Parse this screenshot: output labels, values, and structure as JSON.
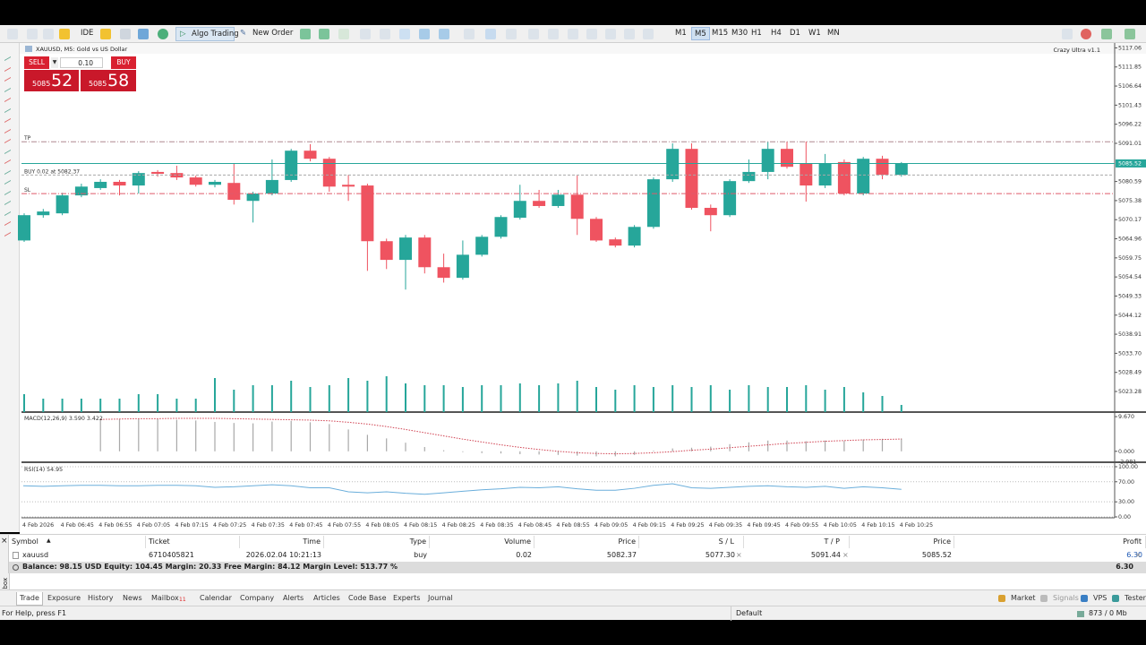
{
  "toolbar": {
    "ide": "IDE",
    "algo_trading": "Algo Trading",
    "new_order": "New Order",
    "timeframes": [
      "M1",
      "M5",
      "M15",
      "M30",
      "H1",
      "H4",
      "D1",
      "W1",
      "MN"
    ]
  },
  "chart_window": {
    "title": "XAUUSD, M5:  Gold vs US Dollar",
    "indicator": "Crazy Ultra v1.1"
  },
  "one_click": {
    "sell": "SELL",
    "volume": "0.10",
    "buy": "BUY",
    "bid_prefix": "5085",
    "bid_pips": "52",
    "ask_prefix": "5085",
    "ask_pips": "58"
  },
  "chart_data": [
    {
      "type": "candlestick",
      "up_color": "#26a69a",
      "down_color": "#ef5360",
      "volume_color": "#26a69a",
      "open": [
        5064.5,
        5071.4,
        5071.9,
        5076.8,
        5078.8,
        5080.5,
        5079.5,
        5083.2,
        5082.9,
        5081.7,
        5079.7,
        5080.2,
        5075.3,
        5077.3,
        5081.0,
        5089.0,
        5086.8,
        5079.7,
        5079.5,
        5064.3,
        5059.2,
        5065.3,
        5057.2,
        5054.3,
        5060.6,
        5065.5,
        5070.7,
        5075.3,
        5073.9,
        5077.0,
        5070.4,
        5064.8,
        5063.1,
        5068.2,
        5081.2,
        5089.5,
        5073.4,
        5071.4,
        5080.7,
        5083.2,
        5089.5,
        5085.6,
        5079.5,
        5085.9,
        5077.3,
        5086.8,
        5082.4
      ],
      "high": [
        5071.9,
        5073.1,
        5077.5,
        5080.0,
        5081.2,
        5081.0,
        5083.4,
        5083.7,
        5084.9,
        5082.2,
        5081.0,
        5085.4,
        5077.8,
        5086.6,
        5089.5,
        5090.8,
        5087.3,
        5082.4,
        5080.0,
        5065.0,
        5066.0,
        5066.0,
        5060.9,
        5064.5,
        5066.0,
        5071.4,
        5079.7,
        5078.3,
        5078.3,
        5082.2,
        5070.9,
        5065.3,
        5068.7,
        5081.7,
        5091.0,
        5091.0,
        5074.3,
        5081.2,
        5086.6,
        5091.5,
        5091.5,
        5091.5,
        5088.1,
        5086.6,
        5087.3,
        5087.6,
        5085.9
      ],
      "low": [
        5064.1,
        5070.7,
        5071.4,
        5076.3,
        5078.3,
        5076.8,
        5077.3,
        5081.9,
        5081.0,
        5079.2,
        5079.0,
        5074.3,
        5069.4,
        5076.8,
        5080.5,
        5086.1,
        5077.8,
        5075.3,
        5056.2,
        5056.7,
        5051.1,
        5055.5,
        5053.0,
        5053.8,
        5060.1,
        5065.0,
        5070.2,
        5073.4,
        5073.4,
        5066.0,
        5064.1,
        5062.6,
        5062.6,
        5067.7,
        5080.5,
        5072.9,
        5067.0,
        5070.9,
        5080.2,
        5081.2,
        5084.1,
        5075.1,
        5078.8,
        5076.8,
        5076.8,
        5081.2,
        5081.9
      ],
      "close": [
        5071.4,
        5072.4,
        5076.8,
        5079.2,
        5080.5,
        5079.5,
        5082.9,
        5082.7,
        5081.7,
        5079.7,
        5080.5,
        5075.6,
        5077.3,
        5081.0,
        5089.0,
        5086.8,
        5079.2,
        5079.2,
        5064.3,
        5059.2,
        5065.3,
        5057.2,
        5054.3,
        5060.6,
        5065.5,
        5070.9,
        5075.3,
        5073.9,
        5077.0,
        5070.4,
        5064.5,
        5063.1,
        5068.2,
        5081.2,
        5089.5,
        5073.4,
        5071.4,
        5080.7,
        5083.2,
        5089.5,
        5084.6,
        5079.5,
        5085.6,
        5077.3,
        5086.8,
        5082.4,
        5085.52
      ],
      "volumes": [
        20,
        15,
        15,
        15,
        15,
        15,
        20,
        20,
        15,
        15,
        38,
        25,
        30,
        30,
        35,
        28,
        30,
        38,
        35,
        40,
        32,
        30,
        30,
        28,
        30,
        30,
        32,
        30,
        32,
        35,
        28,
        25,
        30,
        28,
        30,
        28,
        30,
        25,
        30,
        28,
        28,
        30,
        25,
        28,
        22,
        18,
        8
      ],
      "ylim": [
        5017.66,
        5118.39
      ],
      "yticks": [
        5117.06,
        5111.85,
        5106.64,
        5101.43,
        5096.22,
        5091.01,
        5080.59,
        5075.38,
        5070.17,
        5064.96,
        5059.75,
        5054.54,
        5049.33,
        5044.12,
        5038.91,
        {
          "value": 5033.7,
          "label": "5033.70"
        },
        5028.49,
        5023.28
      ],
      "last_price": 5085.52,
      "last_price_color": "#26a69a",
      "levels": [
        {
          "label": "TP",
          "value": 5091.44,
          "color": "#b08890"
        },
        {
          "label": "BUY 0.02 at 5082.37",
          "value": 5082.37,
          "color": "#a8a8a8"
        },
        {
          "label": "SL",
          "value": 5077.3,
          "color": "#e05a6a"
        }
      ],
      "time_labels": [
        "4 Feb 2026",
        "4 Feb 06:45",
        "4 Feb 06:55",
        "4 Feb 07:05",
        "4 Feb 07:15",
        "4 Feb 07:25",
        "4 Feb 07:35",
        "4 Feb 07:45",
        "4 Feb 07:55",
        "4 Feb 08:05",
        "4 Feb 08:15",
        "4 Feb 08:25",
        "4 Feb 08:35",
        "4 Feb 08:45",
        "4 Feb 08:55",
        "4 Feb 09:05",
        "4 Feb 09:15",
        "4 Feb 09:25",
        "4 Feb 09:35",
        "4 Feb 09:45",
        "4 Feb 09:55",
        "4 Feb 10:05",
        "4 Feb 10:15",
        "4 Feb 10:25"
      ]
    },
    {
      "type": "macd",
      "label": "MACD(12,26,9) 3.590 3.422",
      "histogram_color": "#a8a8a8",
      "signal_color": "#d04050",
      "histogram": [
        null,
        null,
        null,
        null,
        8.9,
        9.0,
        9.1,
        9.0,
        8.8,
        8.6,
        8.2,
        7.9,
        7.8,
        8.3,
        8.5,
        8.1,
        7.6,
        6.1,
        4.6,
        3.6,
        2.4,
        1.2,
        0.3,
        -0.2,
        -0.5,
        -0.6,
        -0.8,
        -0.9,
        -1.0,
        -1.2,
        -1.4,
        -1.4,
        -1.0,
        0.2,
        0.8,
        1.0,
        1.3,
        2.0,
        2.5,
        3.0,
        3.0,
        2.8,
        3.0,
        2.9,
        3.3,
        3.5,
        3.59
      ],
      "signal": [
        null,
        null,
        null,
        null,
        8.9,
        9.0,
        9.1,
        9.1,
        9.2,
        9.2,
        9.2,
        9.1,
        9.0,
        8.9,
        8.8,
        8.7,
        8.5,
        8.1,
        7.6,
        6.9,
        6.1,
        5.2,
        4.3,
        3.4,
        2.6,
        1.8,
        1.1,
        0.5,
        0.0,
        -0.4,
        -0.6,
        -0.7,
        -0.6,
        -0.4,
        -0.1,
        0.3,
        0.6,
        1.0,
        1.4,
        1.8,
        2.2,
        2.5,
        2.8,
        3.0,
        3.2,
        3.3,
        3.42
      ],
      "ylim": [
        -3.05,
        10.94
      ],
      "yticks": [
        {
          "value": 9.67,
          "label": "9.670"
        },
        {
          "value": 0,
          "label": "0.000"
        },
        -2.981
      ]
    },
    {
      "type": "line",
      "label": "RSI(14) 54.95",
      "color": "#6aaedb",
      "values": [
        62,
        61,
        62,
        63,
        63,
        62,
        62,
        63,
        63,
        62,
        59,
        60,
        62,
        64,
        62,
        58,
        58,
        50,
        48,
        50,
        47,
        45,
        48,
        51,
        54,
        56,
        59,
        58,
        60,
        56,
        53,
        53,
        57,
        63,
        66,
        58,
        57,
        59,
        61,
        62,
        60,
        59,
        61,
        57,
        60,
        58,
        54.95
      ],
      "ylim": [
        -1.8,
        107.1
      ],
      "yticks": [
        {
          "value": 100,
          "label": "100.00"
        },
        {
          "value": 70,
          "label": "70.00"
        },
        {
          "value": 30,
          "label": "30.00"
        },
        {
          "value": 0,
          "label": "0.00"
        }
      ]
    }
  ],
  "trade": {
    "headers": [
      "Symbol",
      "Ticket",
      "Time",
      "Type",
      "Volume",
      "Price",
      "S / L",
      "T / P",
      "Price",
      "Profit"
    ],
    "rows": [
      [
        "xauusd",
        "6710405821",
        "2026.02.04 10:21:13",
        "buy",
        "0.02",
        "5082.37",
        "5077.30",
        "5091.44",
        "5085.52",
        "6.30"
      ]
    ],
    "summary": "Balance: 98.15 USD  Equity: 104.45  Margin: 20.33  Free Margin: 84.12  Margin Level: 513.77 %",
    "total": "6.30"
  },
  "tabs": {
    "items": [
      "Trade",
      "Exposure",
      "History",
      "News",
      "Mailbox",
      "Calendar",
      "Company",
      "Alerts",
      "Articles",
      "Code Base",
      "Experts",
      "Journal"
    ],
    "mailbox_badge": "11",
    "right": [
      "Market",
      "Signals",
      "VPS",
      "Tester"
    ],
    "toolbox": "Toolbox"
  },
  "status": {
    "help": "For Help, press F1",
    "profile": "Default",
    "memory": "873 / 0 Mb"
  }
}
